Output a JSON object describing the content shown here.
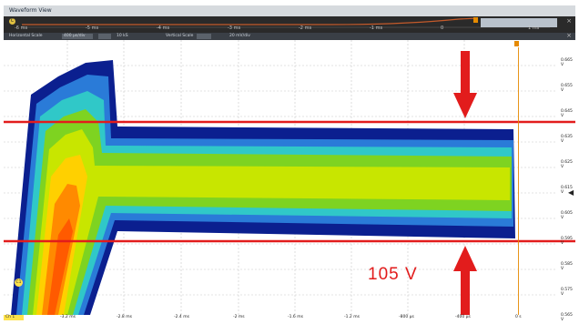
{
  "window": {
    "title": "Waveform View",
    "close_glyph": "×"
  },
  "overview": {
    "ticks": [
      "-6 ms",
      "-5 ms",
      "-4 ms",
      "-3 ms",
      "-2 ms",
      "-1 ms",
      "0",
      "1 ms"
    ],
    "icon_text": "C"
  },
  "toolbar": {
    "fields": [
      "Horizontal Scale",
      "400 µs/div",
      "10 kS",
      "Vertical Scale",
      "20 mV/div"
    ]
  },
  "plot": {
    "y_ticks": [
      "0.665 V",
      "0.655 V",
      "0.645 V",
      "0.635 V",
      "0.625 V",
      "0.615 V",
      "0.605 V",
      "0.595 V",
      "0.585 V",
      "0.575 V",
      "0.565 V"
    ],
    "x_ticks": [
      "-3.2 ms",
      "-2.8 ms",
      "-2.4 ms",
      "-2 ms",
      "-1.6 ms",
      "-1.2 ms",
      "-800 µs",
      "-400 µs",
      "0 s"
    ],
    "channel_label": "C1",
    "channel_footer": "Ch 1"
  },
  "annotation": {
    "text": "105 V",
    "color": "#e21c1c"
  },
  "colors": {
    "trace_outer": "#0b1f8f",
    "trace_mid": "#3aa0ff",
    "trace_core": "#b8e000",
    "hot": "#ff6a00",
    "marker": "#e21c1c"
  }
}
